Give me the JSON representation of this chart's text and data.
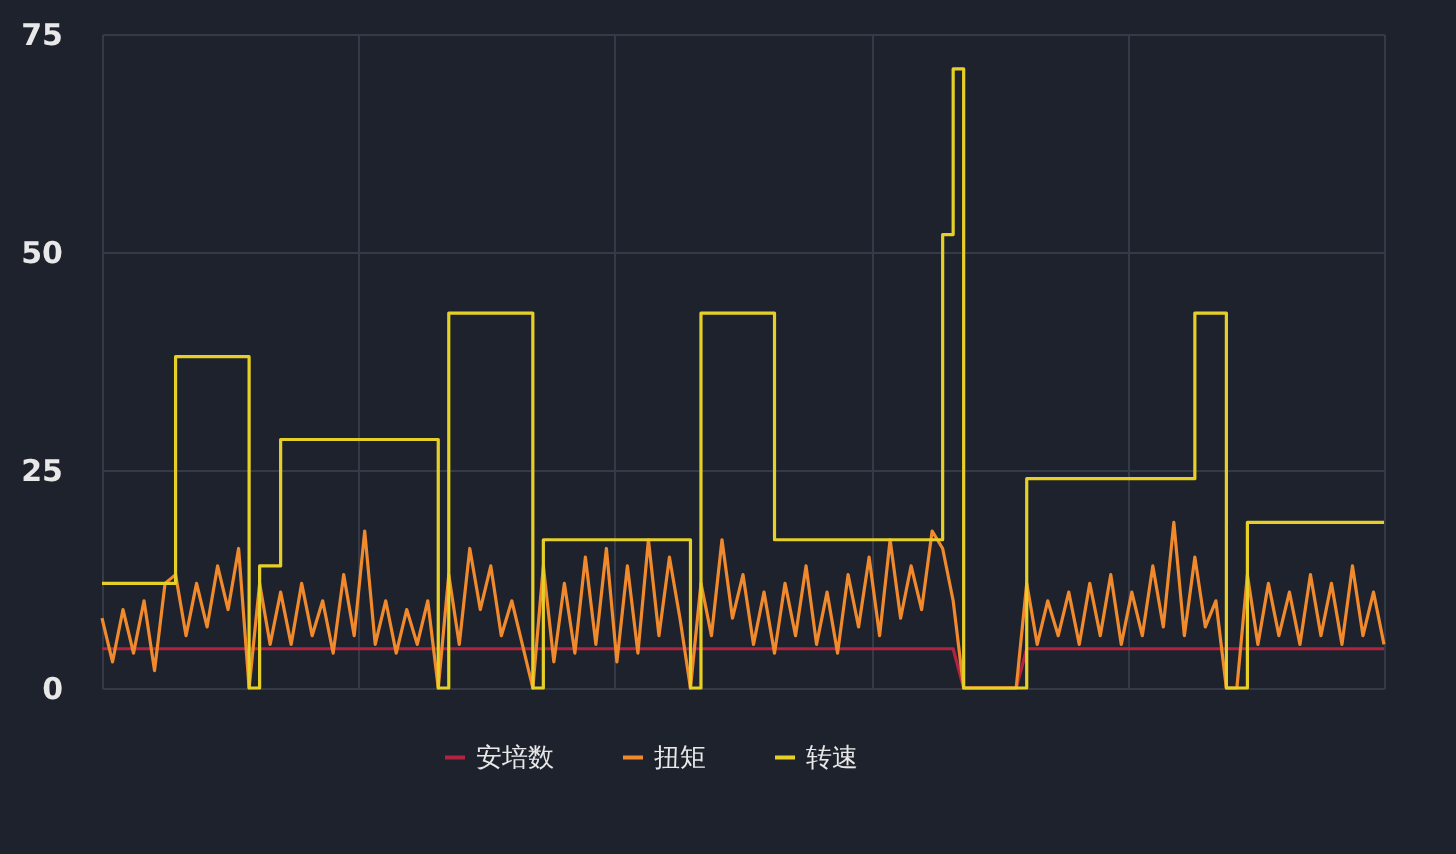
{
  "chart_data": {
    "type": "line",
    "categories": [
      null,
      null,
      null,
      null,
      null,
      null,
      null,
      null,
      null,
      null,
      null,
      null,
      null,
      null,
      null,
      null,
      null,
      null,
      null,
      null,
      null,
      null,
      null,
      null,
      null,
      null,
      null,
      null,
      null,
      null,
      null,
      null,
      null,
      null,
      null,
      null,
      null,
      null,
      null,
      null,
      null,
      null,
      null,
      null,
      null,
      null,
      null,
      null,
      null,
      null,
      null,
      null,
      null,
      null,
      null,
      null,
      null,
      null,
      null,
      null,
      null,
      null,
      null,
      null,
      null,
      null,
      null,
      null,
      null,
      null,
      null,
      null,
      null,
      null,
      null,
      null,
      null,
      null,
      null,
      null,
      null,
      null,
      null,
      null,
      null,
      null,
      null,
      null,
      null,
      null,
      null,
      null,
      null,
      null,
      null,
      null,
      null,
      null,
      null,
      null,
      null,
      null,
      null,
      null,
      null,
      null,
      null,
      null,
      null,
      null,
      null,
      null,
      null,
      null,
      null,
      null,
      null,
      null,
      null,
      null,
      null,
      null,
      null
    ],
    "series": [
      {
        "name": "安培数",
        "color": "#b0243f",
        "values": [
          4.5,
          4.5,
          4.5,
          4.5,
          4.5,
          4.5,
          4.5,
          4.5,
          4.5,
          4.5,
          4.5,
          4.5,
          4.5,
          4.5,
          4.5,
          4.5,
          4.5,
          4.5,
          4.5,
          4.5,
          4.5,
          4.5,
          4.5,
          4.5,
          4.5,
          4.5,
          4.5,
          4.5,
          4.5,
          4.5,
          4.5,
          4.5,
          4.5,
          4.5,
          4.5,
          4.5,
          4.5,
          4.5,
          4.5,
          4.5,
          4.5,
          4.5,
          4.5,
          4.5,
          4.5,
          4.5,
          4.5,
          4.5,
          4.5,
          4.5,
          4.5,
          4.5,
          4.5,
          4.5,
          4.5,
          4.5,
          4.5,
          4.5,
          4.5,
          4.5,
          4.5,
          4.5,
          4.5,
          4.5,
          4.5,
          4.5,
          4.5,
          4.5,
          4.5,
          4.5,
          4.5,
          4.5,
          4.5,
          4.5,
          4.5,
          4.5,
          4.5,
          4.5,
          4.5,
          4.5,
          4.5,
          4.5,
          0,
          0,
          0,
          0,
          0,
          0,
          4.5,
          4.5,
          4.5,
          4.5,
          4.5,
          4.5,
          4.5,
          4.5,
          4.5,
          4.5,
          4.5,
          4.5,
          4.5,
          4.5,
          4.5,
          4.5,
          4.5,
          4.5,
          4.5,
          4.5,
          4.5,
          4.5,
          4.5,
          4.5,
          4.5,
          4.5,
          4.5,
          4.5,
          4.5,
          4.5,
          4.5,
          4.5,
          4.5,
          4.5,
          4.5
        ]
      },
      {
        "name": "扭矩",
        "color": "#f08a2c",
        "values": [
          8,
          3,
          9,
          4,
          10,
          2,
          12,
          13,
          6,
          12,
          7,
          14,
          9,
          16,
          0,
          12,
          5,
          11,
          5,
          12,
          6,
          10,
          4,
          13,
          6,
          18,
          5,
          10,
          4,
          9,
          5,
          10,
          0,
          13,
          5,
          16,
          9,
          14,
          6,
          10,
          5,
          0,
          14,
          3,
          12,
          4,
          15,
          5,
          16,
          3,
          14,
          4,
          17,
          6,
          15,
          8,
          0,
          12,
          6,
          17,
          8,
          13,
          5,
          11,
          4,
          12,
          6,
          14,
          5,
          11,
          4,
          13,
          7,
          15,
          6,
          17,
          8,
          14,
          9,
          18,
          16,
          10,
          0,
          0,
          0,
          0,
          0,
          0,
          12,
          5,
          10,
          6,
          11,
          5,
          12,
          6,
          13,
          5,
          11,
          6,
          14,
          7,
          19,
          6,
          15,
          7,
          10,
          0,
          0,
          13,
          5,
          12,
          6,
          11,
          5,
          13,
          6,
          12,
          5,
          14,
          6,
          11,
          5
        ]
      },
      {
        "name": "转速",
        "color": "#e6d028",
        "type": "step",
        "values": [
          12,
          12,
          12,
          12,
          12,
          12,
          12,
          38,
          38,
          38,
          38,
          38,
          38,
          38,
          0,
          14,
          14,
          28.5,
          28.5,
          28.5,
          28.5,
          28.5,
          28.5,
          28.5,
          28.5,
          28.5,
          28.5,
          28.5,
          28.5,
          28.5,
          28.5,
          28.5,
          0,
          43,
          43,
          43,
          43,
          43,
          43,
          43,
          43,
          0,
          17,
          17,
          17,
          17,
          17,
          17,
          17,
          17,
          17,
          17,
          17,
          17,
          17,
          17,
          0,
          43,
          43,
          43,
          43,
          43,
          43,
          43,
          17,
          17,
          17,
          17,
          17,
          17,
          17,
          17,
          17,
          17,
          17,
          17,
          17,
          17,
          17,
          17,
          52,
          71,
          0,
          0,
          0,
          0,
          0,
          0,
          24,
          24,
          24,
          24,
          24,
          24,
          24,
          24,
          24,
          24,
          24,
          24,
          24,
          24,
          24,
          24,
          43,
          43,
          43,
          0,
          0,
          19,
          19,
          19,
          19,
          19,
          19,
          19,
          19,
          19,
          19,
          19,
          19,
          19,
          19
        ]
      }
    ],
    "ylim": [
      0,
      75
    ],
    "yticks": [
      0,
      25,
      50,
      75
    ],
    "grid": true,
    "legend": "bottom",
    "tick_labels": "y"
  }
}
